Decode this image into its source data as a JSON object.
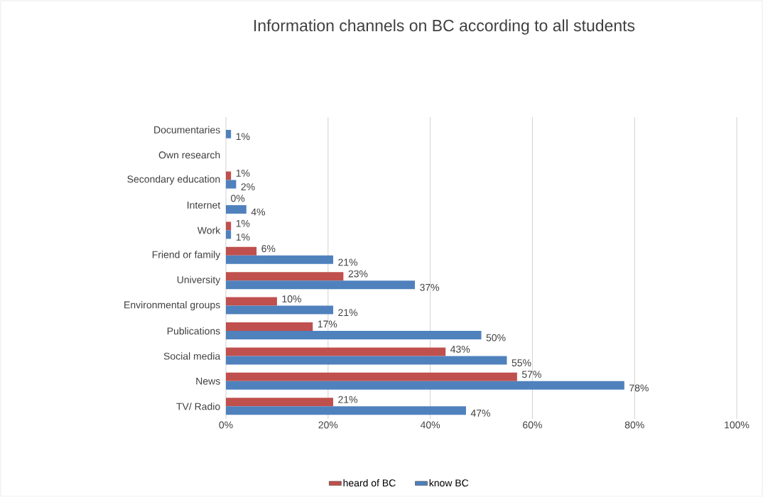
{
  "chart_data": {
    "type": "bar",
    "orientation": "horizontal",
    "title": "Information channels on BC according to all students",
    "categories": [
      "Documentaries",
      "Own research",
      "Secondary education",
      "Internet",
      "Work",
      "Friend or family",
      "University",
      "Environmental groups",
      "Publications",
      "Social media",
      "News",
      "TV/ Radio"
    ],
    "series": [
      {
        "name": "heard of BC",
        "color": "#c0504d",
        "values": [
          null,
          null,
          1,
          0,
          1,
          6,
          23,
          10,
          17,
          43,
          57,
          21
        ],
        "value_labels": [
          null,
          null,
          "1%",
          "0%",
          "1%",
          "6%",
          "23%",
          "10%",
          "17%",
          "43%",
          "57%",
          "21%"
        ]
      },
      {
        "name": "know BC",
        "color": "#4f81bd",
        "values": [
          1,
          null,
          2,
          4,
          1,
          21,
          37,
          21,
          50,
          55,
          78,
          47
        ],
        "value_labels": [
          "1%",
          null,
          "2%",
          "4%",
          "1%",
          "21%",
          "37%",
          "21%",
          "50%",
          "55%",
          "78%",
          "47%"
        ]
      }
    ],
    "xlim": [
      0,
      100
    ],
    "xticks": [
      {
        "value": 0,
        "label": "0%"
      },
      {
        "value": 20,
        "label": "20%"
      },
      {
        "value": 40,
        "label": "40%"
      },
      {
        "value": 60,
        "label": "60%"
      },
      {
        "value": 80,
        "label": "80%"
      },
      {
        "value": 100,
        "label": "100%"
      }
    ],
    "grid": "x",
    "legend": "bottom"
  }
}
